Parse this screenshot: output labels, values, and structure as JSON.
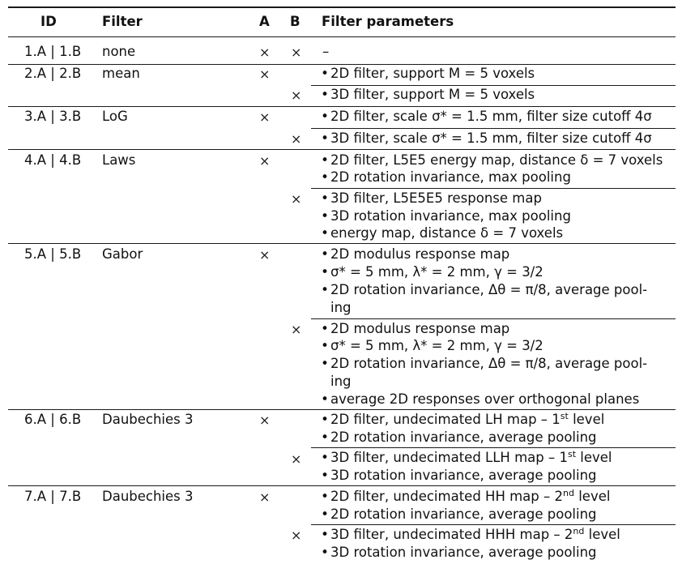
{
  "headers": {
    "id": "ID",
    "filter": "Filter",
    "a": "A",
    "b": "B",
    "params": "Filter parameters"
  },
  "cross": "×",
  "bullet": "•",
  "rows": [
    {
      "id": "1.A | 1.B",
      "filter": "none",
      "dash": "–"
    },
    {
      "id": "2.A | 2.B",
      "filter": "mean",
      "a": [
        "2D filter, support M = 5 voxels"
      ],
      "b": [
        "3D filter, support M = 5 voxels"
      ]
    },
    {
      "id": "3.A | 3.B",
      "filter": "LoG",
      "a": [
        "2D filter, scale σ* = 1.5 mm, filter size cutoff 4σ"
      ],
      "b": [
        "3D filter, scale σ* = 1.5 mm, filter size cutoff 4σ"
      ]
    },
    {
      "id": "4.A | 4.B",
      "filter": "Laws",
      "a": [
        "2D filter, L5E5 energy map, distance δ = 7 voxels",
        "2D rotation invariance, max pooling"
      ],
      "b": [
        "3D filter, L5E5E5 response map",
        "3D rotation invariance, max pooling",
        "energy map, distance δ = 7 voxels"
      ]
    },
    {
      "id": "5.A | 5.B",
      "filter": "Gabor",
      "a": [
        "2D modulus response map",
        "σ* = 5 mm, λ* = 2 mm, γ = 3/2",
        "2D rotation invariance, Δθ = π/8, average pool-ing"
      ],
      "b": [
        "2D modulus response map",
        "σ* = 5 mm, λ* = 2 mm, γ = 3/2",
        "2D rotation invariance, Δθ = π/8, average pool-ing",
        "average 2D responses over orthogonal planes"
      ]
    },
    {
      "id": "6.A | 6.B",
      "filter": "Daubechies 3",
      "a": [
        "2D filter, undecimated LH map – 1st level",
        "2D rotation invariance, average pooling"
      ],
      "b": [
        "3D filter, undecimated LLH map – 1st level",
        "3D rotation invariance, average pooling"
      ]
    },
    {
      "id": "7.A | 7.B",
      "filter": "Daubechies 3",
      "a": [
        "2D filter, undecimated HH map – 2nd level",
        "2D rotation invariance, average pooling"
      ],
      "b": [
        "3D filter, undecimated HHH map – 2nd level",
        "3D rotation invariance, average pooling"
      ]
    }
  ]
}
